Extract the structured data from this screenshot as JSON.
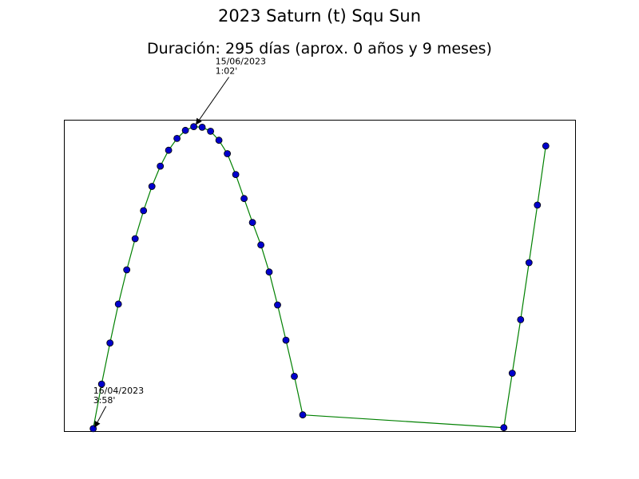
{
  "title": "2023 Saturn (t) Squ Sun",
  "subtitle": "Duración: 295 días (aprox. 0 años y 9 meses)",
  "chart_data": {
    "type": "line",
    "title": "2023 Saturn (t) Squ Sun",
    "subtitle": "Duración: 295 días (aprox. 0 años y 9 meses)",
    "xlabel": "",
    "ylabel": "",
    "grid": false,
    "x_ticks_shown": false,
    "y_ticks_shown": false,
    "line_color": "#008000",
    "marker_face": "#0000cc",
    "marker_edge": "#000000",
    "x": [
      0,
      1,
      2,
      3,
      4,
      5,
      6,
      7,
      8,
      9,
      10,
      11,
      12,
      13,
      14,
      15,
      16,
      17,
      18,
      19,
      20,
      21,
      22,
      23,
      24,
      25,
      49,
      50,
      51,
      52,
      53,
      54
    ],
    "y": [
      0.0,
      0.143,
      0.275,
      0.4,
      0.51,
      0.61,
      0.7,
      0.778,
      0.843,
      0.894,
      0.932,
      0.958,
      0.97,
      0.968,
      0.955,
      0.926,
      0.883,
      0.816,
      0.739,
      0.662,
      0.59,
      0.503,
      0.397,
      0.284,
      0.168,
      0.044,
      0.003,
      0.178,
      0.35,
      0.533,
      0.718,
      0.908
    ],
    "xlim": [
      -3.5,
      57.5
    ],
    "ylim": [
      -0.008,
      0.992
    ],
    "annotations": [
      {
        "text_line1": "16/04/2023",
        "text_line2": "3:58'",
        "point_index": 0
      },
      {
        "text_line1": "15/06/2023",
        "text_line2": "1:02'",
        "point_index": 12
      }
    ]
  }
}
